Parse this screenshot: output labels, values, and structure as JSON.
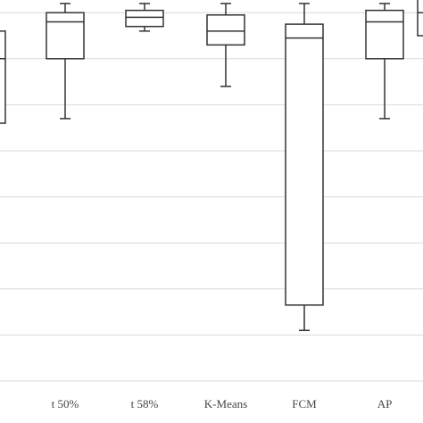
{
  "chart_data": {
    "type": "box",
    "categories": [
      "",
      "t 50%",
      "t 58%",
      "K-Means",
      "FCM",
      "AP",
      ""
    ],
    "ylim": [
      0,
      8.3
    ],
    "grid": true,
    "series": [
      {
        "min": 5.6,
        "q1": 5.6,
        "median": 7.0,
        "q3": 7.6,
        "max": 7.6
      },
      {
        "min": 5.7,
        "q1": 7.0,
        "median": 7.8,
        "q3": 8.0,
        "max": 8.2
      },
      {
        "min": 7.6,
        "q1": 7.7,
        "median": 7.9,
        "q3": 8.05,
        "max": 8.2
      },
      {
        "min": 6.4,
        "q1": 7.3,
        "median": 7.6,
        "q3": 7.95,
        "max": 8.2
      },
      {
        "min": 1.1,
        "q1": 1.65,
        "median": 7.45,
        "q3": 7.75,
        "max": 8.2
      },
      {
        "min": 5.7,
        "q1": 7.0,
        "median": 7.8,
        "q3": 8.05,
        "max": 8.2
      },
      {
        "min": 7.5,
        "q1": 7.5,
        "median": 8.0,
        "q3": 8.3,
        "max": 8.3
      }
    ]
  }
}
